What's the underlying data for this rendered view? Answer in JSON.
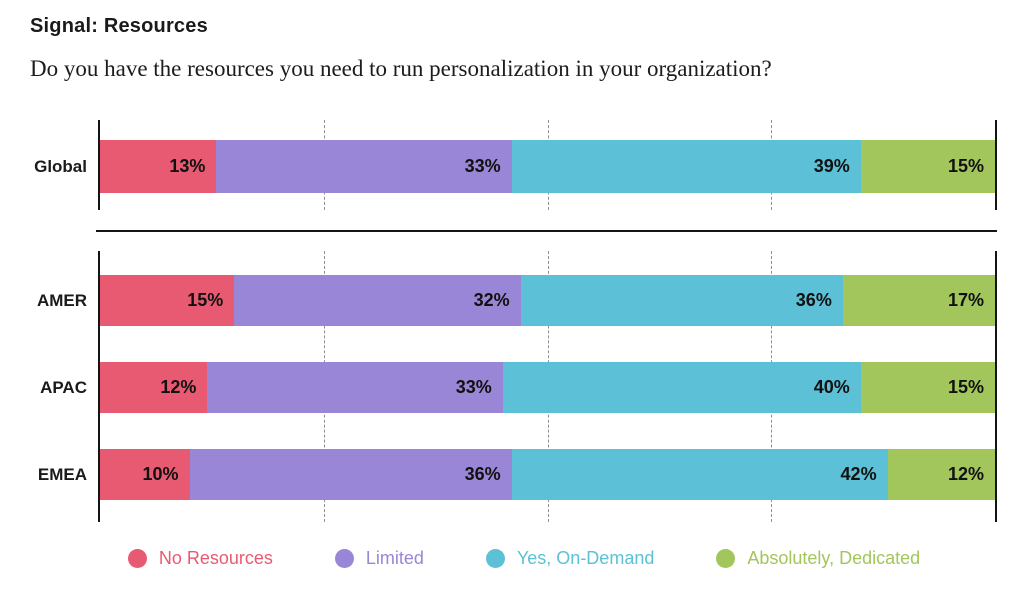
{
  "header": {
    "title": "Signal: Resources",
    "subtitle": "Do you have the resources you need to run personalization in your organization?"
  },
  "chart_data": {
    "type": "bar",
    "variant": "horizontal-stacked",
    "title": "Signal: Resources",
    "question": "Do you have the resources you need to run personalization in your organization?",
    "unit": "%",
    "xlim": [
      0,
      100
    ],
    "gridlines_percent": [
      25,
      50,
      75
    ],
    "grid_style": "dashed",
    "legend_position": "bottom",
    "series": [
      {
        "name": "No Resources",
        "color": "#E85A72"
      },
      {
        "name": "Limited",
        "color": "#9A86D6"
      },
      {
        "name": "Yes, On-Demand",
        "color": "#5CC0D6"
      },
      {
        "name": "Absolutely, Dedicated",
        "color": "#A3C65C"
      }
    ],
    "groups": [
      {
        "name": "global",
        "rows": [
          {
            "label": "Global",
            "values": [
              13,
              33,
              39,
              15
            ]
          }
        ]
      },
      {
        "name": "regions",
        "rows": [
          {
            "label": "AMER",
            "values": [
              15,
              32,
              36,
              17
            ]
          },
          {
            "label": "APAC",
            "values": [
              12,
              33,
              40,
              15
            ]
          },
          {
            "label": "EMEA",
            "values": [
              10,
              36,
              42,
              12
            ]
          }
        ]
      }
    ]
  }
}
